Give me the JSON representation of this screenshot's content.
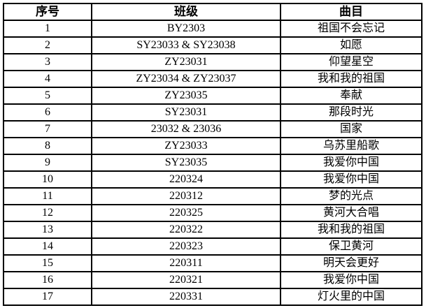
{
  "table": {
    "headers": [
      "序号",
      "班级",
      "曲目"
    ],
    "rows": [
      [
        "1",
        "BY2303",
        "祖国不会忘记"
      ],
      [
        "2",
        "SY23033 & SY23038",
        "如愿"
      ],
      [
        "3",
        "ZY23031",
        "仰望星空"
      ],
      [
        "4",
        "ZY23034 & ZY23037",
        "我和我的祖国"
      ],
      [
        "5",
        "ZY23035",
        "奉献"
      ],
      [
        "6",
        "SY23031",
        "那段时光"
      ],
      [
        "7",
        "23032 & 23036",
        "国家"
      ],
      [
        "8",
        "ZY23033",
        "乌苏里船歌"
      ],
      [
        "9",
        "SY23035",
        "我爱你中国"
      ],
      [
        "10",
        "220324",
        "我爱你中国"
      ],
      [
        "11",
        "220312",
        "梦的光点"
      ],
      [
        "12",
        "220325",
        "黄河大合唱"
      ],
      [
        "13",
        "220322",
        "我和我的祖国"
      ],
      [
        "14",
        "220323",
        "保卫黄河"
      ],
      [
        "15",
        "220311",
        "明天会更好"
      ],
      [
        "16",
        "220321",
        "我爱你中国"
      ],
      [
        "17",
        "220331",
        "灯火里的中国"
      ]
    ]
  },
  "colors": {
    "border": "#000000",
    "text": "#000000",
    "background": "#ffffff"
  }
}
